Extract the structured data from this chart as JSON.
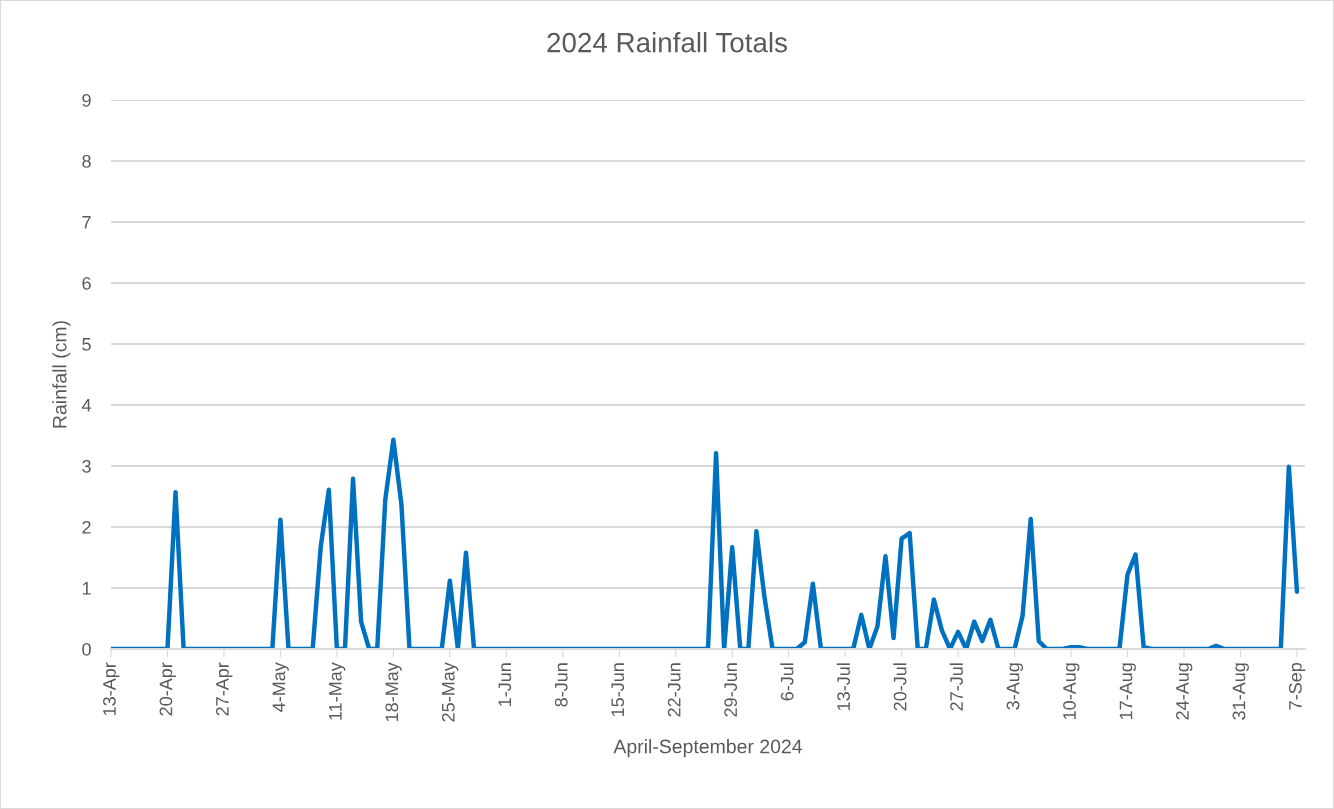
{
  "chart_data": {
    "type": "line",
    "title": "2024 Rainfall Totals",
    "xlabel": "April-September 2024",
    "ylabel": "Rainfall (cm)",
    "series": [
      {
        "color": "#0070c0",
        "x": [
          "2024-04-13",
          "2024-04-20",
          "2024-04-21",
          "2024-04-22",
          "2024-05-03",
          "2024-05-04",
          "2024-05-05",
          "2024-05-08",
          "2024-05-09",
          "2024-05-10",
          "2024-05-11",
          "2024-05-12",
          "2024-05-13",
          "2024-05-14",
          "2024-05-15",
          "2024-05-16",
          "2024-05-17",
          "2024-05-18",
          "2024-05-19",
          "2024-05-20",
          "2024-05-24",
          "2024-05-25",
          "2024-05-26",
          "2024-05-27",
          "2024-05-28",
          "2024-06-26",
          "2024-06-27",
          "2024-06-28",
          "2024-06-29",
          "2024-06-30",
          "2024-07-01",
          "2024-07-02",
          "2024-07-03",
          "2024-07-04",
          "2024-07-07",
          "2024-07-08",
          "2024-07-09",
          "2024-07-10",
          "2024-07-14",
          "2024-07-15",
          "2024-07-16",
          "2024-07-17",
          "2024-07-18",
          "2024-07-19",
          "2024-07-20",
          "2024-07-21",
          "2024-07-22",
          "2024-07-23",
          "2024-07-24",
          "2024-07-25",
          "2024-07-26",
          "2024-07-27",
          "2024-07-28",
          "2024-07-29",
          "2024-07-30",
          "2024-07-31",
          "2024-08-01",
          "2024-08-03",
          "2024-08-04",
          "2024-08-05",
          "2024-08-06",
          "2024-08-07",
          "2024-08-09",
          "2024-08-10",
          "2024-08-11",
          "2024-08-12",
          "2024-08-16",
          "2024-08-17",
          "2024-08-18",
          "2024-08-19",
          "2024-08-20",
          "2024-08-27",
          "2024-08-28",
          "2024-08-29",
          "2024-09-05",
          "2024-09-06",
          "2024-09-07"
        ],
        "values": [
          0,
          0,
          2.57,
          0,
          0,
          2.12,
          0,
          0,
          1.68,
          2.61,
          0,
          0,
          2.79,
          0.45,
          0,
          0,
          2.45,
          3.43,
          2.37,
          0,
          0,
          1.12,
          0,
          1.58,
          0,
          0,
          3.21,
          0,
          1.67,
          0,
          0,
          1.93,
          0.85,
          0,
          0,
          0.11,
          1.07,
          0,
          0,
          0.56,
          0,
          0.37,
          1.52,
          0.18,
          1.81,
          1.9,
          0,
          0,
          0.81,
          0.3,
          0,
          0.28,
          0,
          0.45,
          0.13,
          0.48,
          0,
          0,
          0.55,
          2.13,
          0.13,
          0,
          0,
          0.03,
          0.03,
          0,
          0,
          1.22,
          1.55,
          0.03,
          0,
          0,
          0.05,
          0,
          0,
          2.99,
          0.94
        ]
      }
    ],
    "xlim": [
      "2024-04-13",
      "2024-09-08"
    ],
    "xticks": [
      {
        "value": "2024-04-13",
        "label": "13-Apr"
      },
      {
        "value": "2024-04-20",
        "label": "20-Apr"
      },
      {
        "value": "2024-04-27",
        "label": "27-Apr"
      },
      {
        "value": "2024-05-04",
        "label": "4-May"
      },
      {
        "value": "2024-05-11",
        "label": "11-May"
      },
      {
        "value": "2024-05-18",
        "label": "18-May"
      },
      {
        "value": "2024-05-25",
        "label": "25-May"
      },
      {
        "value": "2024-06-01",
        "label": "1-Jun"
      },
      {
        "value": "2024-06-08",
        "label": "8-Jun"
      },
      {
        "value": "2024-06-15",
        "label": "15-Jun"
      },
      {
        "value": "2024-06-22",
        "label": "22-Jun"
      },
      {
        "value": "2024-06-29",
        "label": "29-Jun"
      },
      {
        "value": "2024-07-06",
        "label": "6-Jul"
      },
      {
        "value": "2024-07-13",
        "label": "13-Jul"
      },
      {
        "value": "2024-07-20",
        "label": "20-Jul"
      },
      {
        "value": "2024-07-27",
        "label": "27-Jul"
      },
      {
        "value": "2024-08-03",
        "label": "3-Aug"
      },
      {
        "value": "2024-08-10",
        "label": "10-Aug"
      },
      {
        "value": "2024-08-17",
        "label": "17-Aug"
      },
      {
        "value": "2024-08-24",
        "label": "24-Aug"
      },
      {
        "value": "2024-08-31",
        "label": "31-Aug"
      },
      {
        "value": "2024-09-07",
        "label": "7-Sep"
      }
    ],
    "ylim": [
      0,
      9
    ],
    "yticks": [
      0,
      1,
      2,
      3,
      4,
      5,
      6,
      7,
      8,
      9
    ],
    "grid": "y",
    "marker": "none",
    "line_style": "solid"
  }
}
